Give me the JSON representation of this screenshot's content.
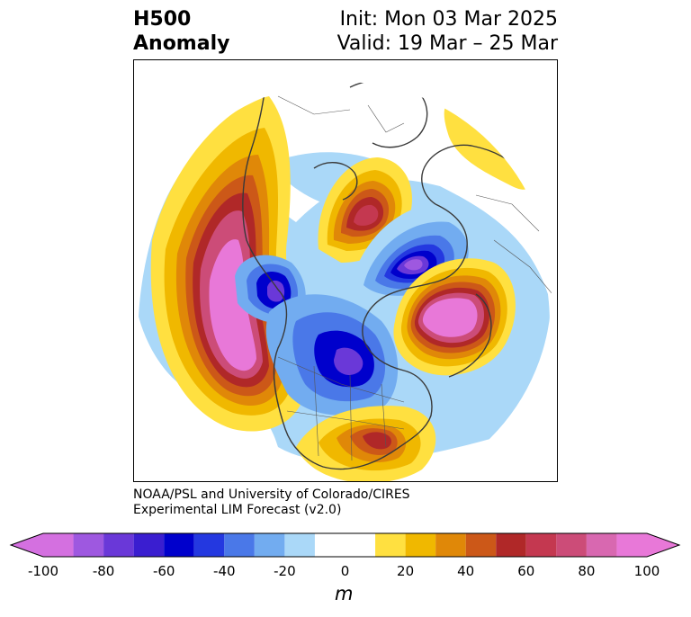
{
  "title": {
    "line1": "H500",
    "line2": "Anomaly"
  },
  "subtitle": {
    "init": "Init: Mon 03 Mar 2025",
    "valid": "Valid: 19 Mar – 25 Mar"
  },
  "credit": {
    "line1": "NOAA/PSL and University of Colorado/CIRES",
    "line2": "Experimental LIM Forecast (v2.0)"
  },
  "colorbar": {
    "unit": "m",
    "ticks": [
      "-100",
      "-80",
      "-60",
      "-40",
      "-20",
      "0",
      "20",
      "40",
      "60",
      "80",
      "100"
    ],
    "levels": [
      -100,
      -90,
      -80,
      -70,
      -60,
      -50,
      -40,
      -30,
      -20,
      -10,
      10,
      20,
      30,
      40,
      50,
      60,
      70,
      80,
      90,
      100
    ],
    "colors": [
      "#d470e0",
      "#9e58e0",
      "#6a38d8",
      "#3a1ed0",
      "#0000cc",
      "#2438e0",
      "#4a78e8",
      "#72acf0",
      "#aad8f8",
      "#ffffff",
      "#ffe040",
      "#f0b800",
      "#e08808",
      "#cc5818",
      "#b02828",
      "#c43850",
      "#cc4c78",
      "#d868b0",
      "#e878d8"
    ],
    "under_color": "#d470e0",
    "over_color": "#e878d8"
  },
  "map": {
    "projection": "north-polar-stereographic",
    "field": "500 hPa geopotential height anomaly",
    "anomaly_centers": [
      {
        "region": "North Pacific",
        "sign": "positive",
        "peak_m": 100
      },
      {
        "region": "Alaska / NE Pacific",
        "sign": "negative",
        "peak_m": -90
      },
      {
        "region": "Central Canada",
        "sign": "negative",
        "peak_m": -70
      },
      {
        "region": "Gulf of Mexico / Southeast US",
        "sign": "positive",
        "peak_m": 60
      },
      {
        "region": "North Atlantic / Western Europe",
        "sign": "positive",
        "peak_m": 100
      },
      {
        "region": "Scandinavia / Barents Sea",
        "sign": "negative",
        "peak_m": -90
      },
      {
        "region": "Siberia",
        "sign": "positive",
        "peak_m": 70
      },
      {
        "region": "Eastern Europe",
        "sign": "positive",
        "peak_m": 10
      }
    ]
  }
}
